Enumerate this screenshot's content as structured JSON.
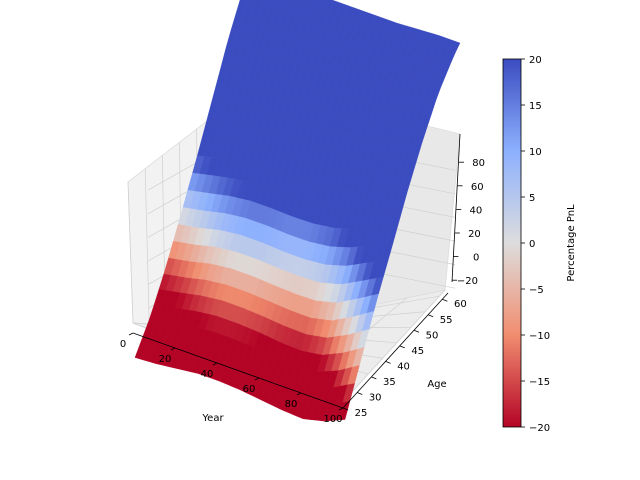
{
  "chart_data": {
    "type": "surface",
    "xlabel": "Year",
    "ylabel": "Age",
    "zlabel": "",
    "x_ticks": [
      0,
      20,
      40,
      60,
      80,
      100
    ],
    "y_ticks": [
      25,
      30,
      35,
      40,
      45,
      50,
      55,
      60
    ],
    "z_ticks": [
      -20,
      0,
      20,
      40,
      60,
      80
    ],
    "xlim": [
      0,
      100
    ],
    "ylim": [
      25,
      62
    ],
    "zlim": [
      -40,
      100
    ],
    "colormap": "coolwarm_r",
    "grid": true,
    "colorbar": {
      "label": "Percentage PnL",
      "ticks": [
        -20,
        -15,
        -10,
        -5,
        0,
        5,
        10,
        15,
        20
      ],
      "range": [
        -20,
        20
      ],
      "low_color": "#b40426",
      "mid_color": "#dddddd",
      "high_color": "#3b4cc0"
    },
    "surface_profile": {
      "description_source": "read from rendered surface",
      "corner_values": {
        "year_0_age_25": -25,
        "year_100_age_25": -25,
        "year_0_age_62": 95,
        "year_100_age_62": 90
      },
      "year_samples": [
        0,
        10,
        20,
        30,
        40,
        50,
        60,
        70,
        80,
        90,
        100
      ],
      "age_samples": [
        25,
        30,
        35,
        40,
        45,
        50,
        55,
        60,
        62
      ],
      "z_values_by_age": [
        [
          -25,
          -24,
          -22,
          -20,
          -20,
          -21,
          -23,
          -25,
          -26,
          -22,
          -15
        ],
        [
          -18,
          -15,
          -12,
          -10,
          -10,
          -11,
          -13,
          -14,
          -12,
          -5,
          5
        ],
        [
          -5,
          -2,
          2,
          4,
          4,
          3,
          2,
          2,
          6,
          15,
          25
        ],
        [
          12,
          15,
          19,
          21,
          21,
          20,
          20,
          22,
          27,
          35,
          42
        ],
        [
          30,
          34,
          37,
          39,
          39,
          39,
          40,
          43,
          48,
          55,
          60
        ],
        [
          50,
          53,
          56,
          58,
          59,
          60,
          61,
          63,
          67,
          72,
          75
        ],
        [
          70,
          72,
          74,
          76,
          77,
          77,
          78,
          80,
          82,
          85,
          86
        ],
        [
          85,
          84,
          84,
          85,
          86,
          86,
          86,
          87,
          88,
          89,
          90
        ],
        [
          95,
          88,
          86,
          87,
          88,
          88,
          88,
          88,
          89,
          90,
          90
        ]
      ]
    }
  }
}
